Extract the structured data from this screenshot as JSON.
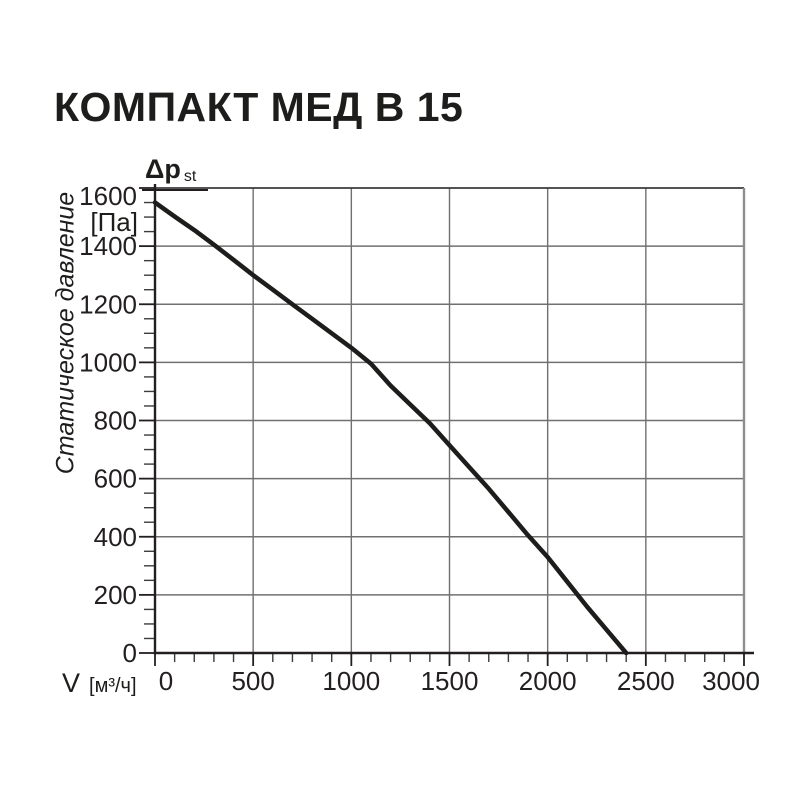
{
  "page": {
    "title": "КОМПАКТ МЕД В 15"
  },
  "chart": {
    "pressure_symbol": "Δp",
    "pressure_symbol_sub": "st",
    "pressure_unit": "[Па]",
    "y_axis_title": "Статическое давление",
    "flow_symbol": "V",
    "flow_unit": "[м³/ч]"
  },
  "chart_data": {
    "type": "line",
    "title": "КОМПАКТ МЕД В 15",
    "xlabel": "V [м³/ч]",
    "ylabel": "Статическое давление Δp st [Па]",
    "xlim": [
      0,
      3000
    ],
    "ylim": [
      0,
      1600
    ],
    "x_major_ticks": [
      0,
      500,
      1000,
      1500,
      2000,
      2500,
      3000
    ],
    "y_major_ticks": [
      0,
      200,
      400,
      600,
      800,
      1000,
      1200,
      1400,
      1600
    ],
    "x_minor_step": 100,
    "y_minor_step": 50,
    "grid": "major",
    "legend": "none",
    "series": [
      {
        "name": "fan-performance-curve",
        "points": [
          [
            0,
            1550
          ],
          [
            100,
            1502
          ],
          [
            200,
            1455
          ],
          [
            300,
            1405
          ],
          [
            400,
            1353
          ],
          [
            500,
            1300
          ],
          [
            600,
            1250
          ],
          [
            700,
            1200
          ],
          [
            800,
            1150
          ],
          [
            900,
            1100
          ],
          [
            1000,
            1050
          ],
          [
            1100,
            995
          ],
          [
            1200,
            920
          ],
          [
            1300,
            855
          ],
          [
            1400,
            790
          ],
          [
            1500,
            715
          ],
          [
            1600,
            640
          ],
          [
            1700,
            565
          ],
          [
            1800,
            485
          ],
          [
            1900,
            405
          ],
          [
            2000,
            330
          ],
          [
            2100,
            245
          ],
          [
            2200,
            160
          ],
          [
            2300,
            80
          ],
          [
            2400,
            0
          ]
        ]
      }
    ]
  },
  "colors": {
    "ink": "#1d1d1b",
    "grid": "#707070",
    "frame_right": "#8e8e8e"
  }
}
